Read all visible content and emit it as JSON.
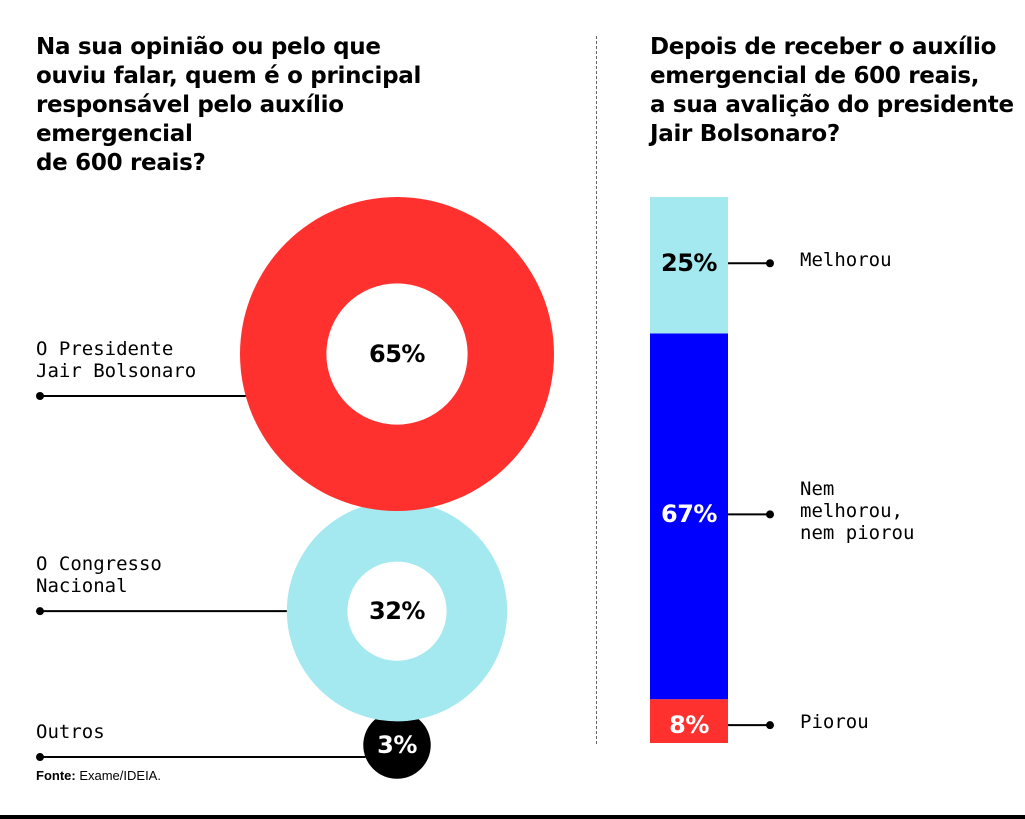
{
  "chart_data": [
    {
      "type": "pie",
      "title": "Na sua opinião ou pelo que\nouviu falar, quem é o principal\nresponsável pelo auxílio\nemergencial\nde 600 reais?",
      "categories": [
        "O Presidente\nJair Bolsonaro",
        "O Congresso\nNacional",
        "Outros"
      ],
      "values": [
        65,
        32,
        3
      ],
      "value_labels": [
        "65%",
        "32%",
        "3%"
      ],
      "colors": [
        "#ff312e",
        "#a5e9f0",
        "#000000"
      ]
    },
    {
      "type": "bar",
      "stacked": true,
      "title": "Depois de receber o auxílio\nemergencial de 600 reais,\na sua avalição do presidente\nJair Bolsonaro?",
      "categories": [
        "Melhorou",
        "Nem\nmelhorou,\nnem piorou",
        "Piorou"
      ],
      "values": [
        25,
        67,
        8
      ],
      "value_labels": [
        "25%",
        "67%",
        "8%"
      ],
      "colors": [
        "#a5e9f0",
        "#0000ff",
        "#ff312e"
      ],
      "value_label_colors": [
        "#000000",
        "#ffffff",
        "#ffffff"
      ]
    }
  ],
  "source": {
    "label": "Fonte:",
    "text": " Exame/IDEIA."
  }
}
